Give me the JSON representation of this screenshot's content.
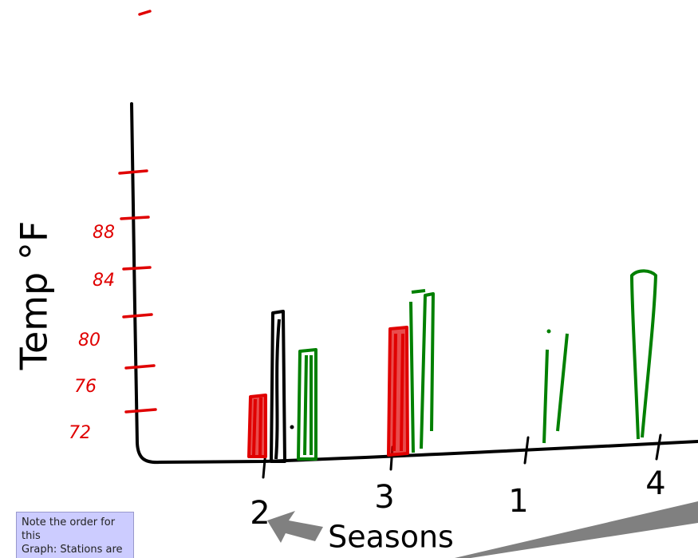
{
  "axis_title": "Temp °F",
  "y_labels": [
    "72",
    "76",
    "80",
    "84",
    "88"
  ],
  "x_labels": [
    "2",
    "3",
    "1",
    "4"
  ],
  "x_title": "Seasons",
  "note": {
    "lines": [
      "Note the order for this",
      "Graph:  Stations are"
    ]
  }
}
